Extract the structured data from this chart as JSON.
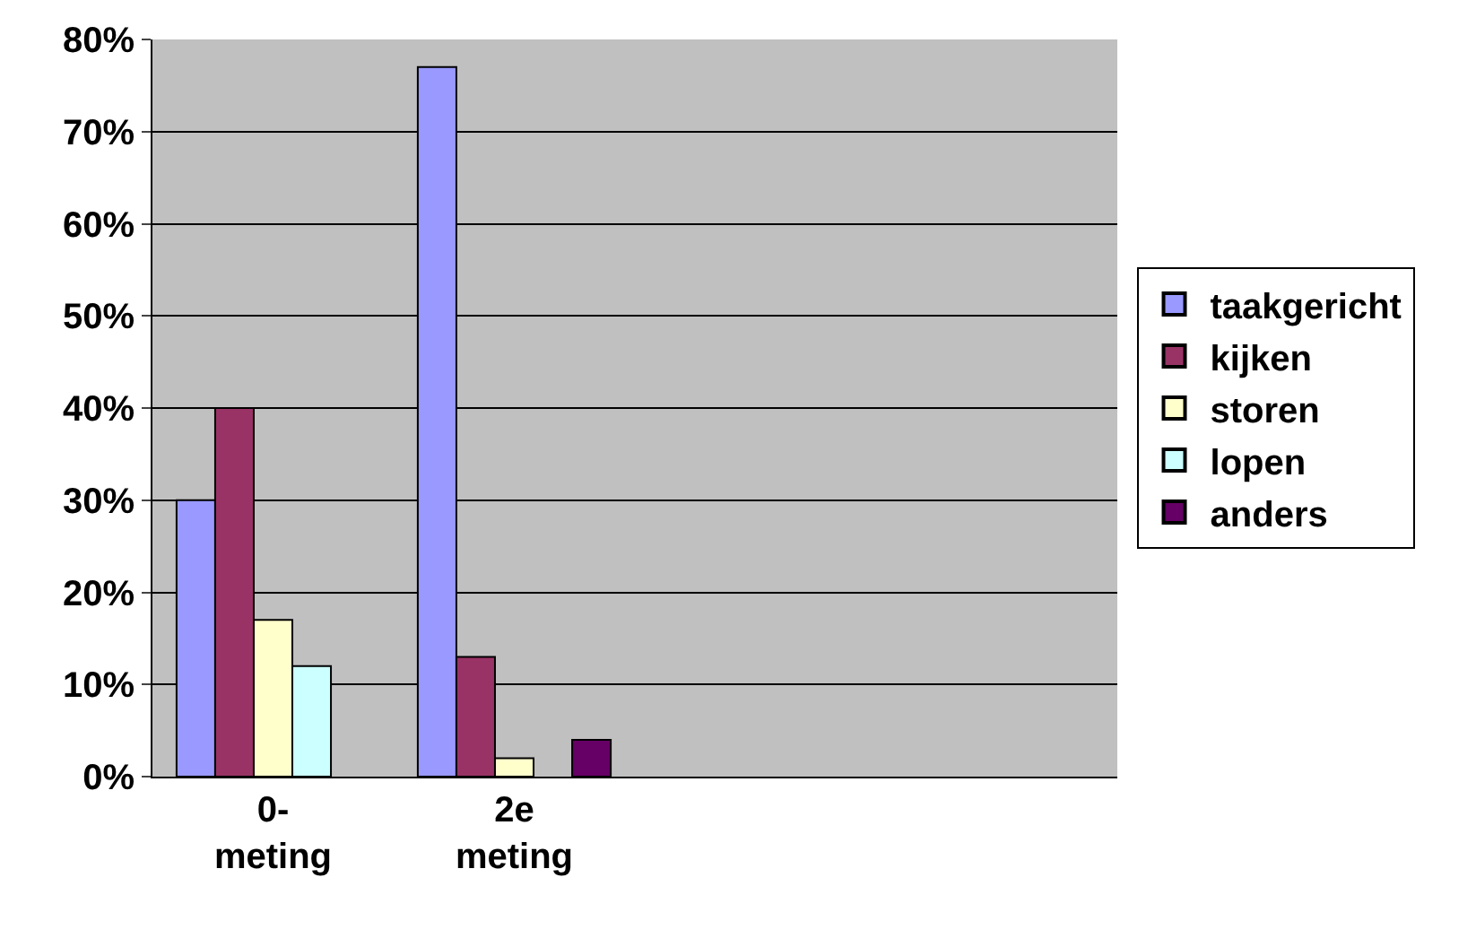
{
  "chart_data": {
    "type": "bar",
    "categories": [
      "0-\nmeting",
      "2e\nmeting",
      null,
      null
    ],
    "series": [
      {
        "name": "taakgericht",
        "color": "#9999ff",
        "values": [
          30,
          77,
          null,
          null
        ]
      },
      {
        "name": "kijken",
        "color": "#993366",
        "values": [
          40,
          13,
          null,
          null
        ]
      },
      {
        "name": "storen",
        "color": "#ffffcc",
        "values": [
          17,
          2,
          null,
          null
        ]
      },
      {
        "name": "lopen",
        "color": "#ccffff",
        "values": [
          12,
          null,
          null,
          null
        ]
      },
      {
        "name": "anders",
        "color": "#660066",
        "values": [
          null,
          4,
          null,
          null
        ]
      }
    ],
    "ylim": [
      0,
      80
    ],
    "yticks": [
      {
        "value": 0,
        "label": "0%"
      },
      {
        "value": 10,
        "label": "10%"
      },
      {
        "value": 20,
        "label": "20%"
      },
      {
        "value": 30,
        "label": "30%"
      },
      {
        "value": 40,
        "label": "40%"
      },
      {
        "value": 50,
        "label": "50%"
      },
      {
        "value": 60,
        "label": "60%"
      },
      {
        "value": 70,
        "label": "70%"
      },
      {
        "value": 80,
        "label": "80%"
      }
    ],
    "grid": "y",
    "legend": "right"
  }
}
